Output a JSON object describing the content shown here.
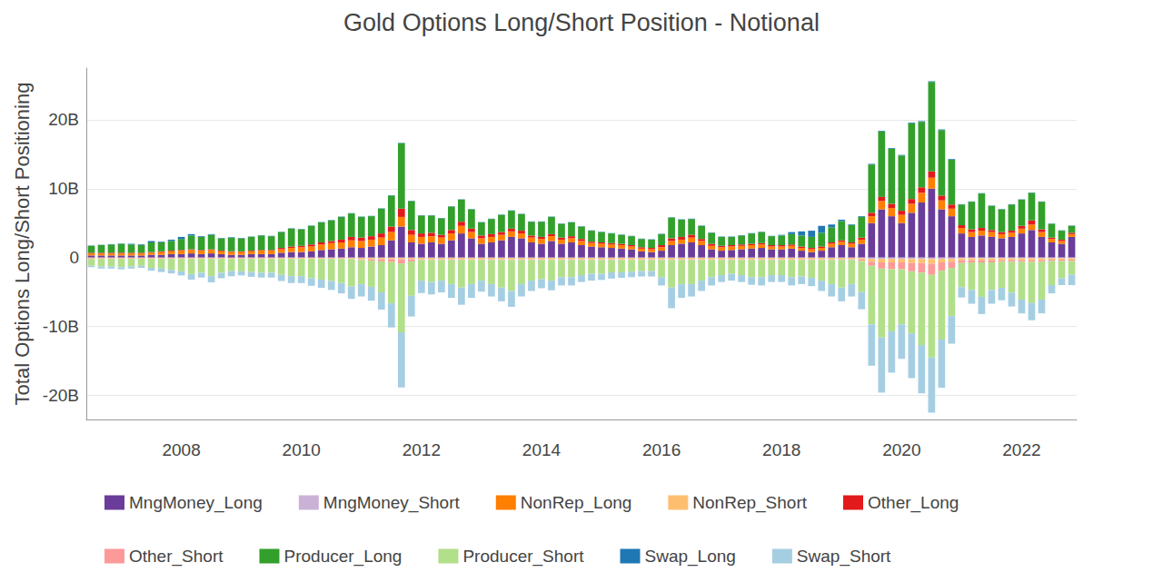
{
  "chart_data": {
    "type": "bar",
    "title": "Gold Options Long/Short Position - Notional",
    "y_label": "Total Options Long/Short Positioning",
    "stacked": true,
    "grid": true,
    "legend": "bottom",
    "categories": [
      null,
      null,
      null,
      null,
      null,
      null,
      null,
      null,
      null,
      "2008",
      null,
      null,
      null,
      null,
      null,
      null,
      null,
      null,
      null,
      null,
      null,
      "2010",
      null,
      null,
      null,
      null,
      null,
      null,
      null,
      null,
      null,
      null,
      null,
      "2012",
      null,
      null,
      null,
      null,
      null,
      null,
      null,
      null,
      null,
      null,
      null,
      "2014",
      null,
      null,
      null,
      null,
      null,
      null,
      null,
      null,
      null,
      null,
      null,
      "2016",
      null,
      null,
      null,
      null,
      null,
      null,
      null,
      null,
      null,
      null,
      null,
      "2018",
      null,
      null,
      null,
      null,
      null,
      null,
      null,
      null,
      null,
      null,
      null,
      "2020",
      null,
      null,
      null,
      null,
      null,
      null,
      null,
      null,
      null,
      null,
      null,
      "2022",
      null,
      null,
      null,
      null,
      null
    ],
    "ylim": [
      -23.5,
      27.5
    ],
    "yticks": [
      {
        "value": -20,
        "label": "-20B"
      },
      {
        "value": -10,
        "label": "-10B"
      },
      0,
      {
        "value": 10,
        "label": "10B"
      },
      {
        "value": 20,
        "label": "20B"
      }
    ],
    "series": [
      {
        "name": "MngMoney_Long",
        "color": "#6a3d9a",
        "values": [
          0.3,
          0.3,
          0.3,
          0.3,
          0.3,
          0.3,
          0.4,
          0.4,
          0.5,
          0.5,
          0.6,
          0.5,
          0.6,
          0.5,
          0.4,
          0.4,
          0.5,
          0.5,
          0.5,
          0.7,
          0.8,
          0.8,
          0.9,
          1.1,
          1.2,
          1.3,
          1.5,
          1.4,
          1.6,
          1.8,
          2.5,
          4.5,
          2.2,
          2.0,
          2.2,
          2.0,
          2.5,
          3.5,
          2.8,
          2.0,
          2.2,
          2.5,
          3.0,
          2.8,
          2.2,
          2.0,
          2.4,
          2.0,
          2.2,
          1.8,
          1.6,
          1.5,
          1.4,
          1.3,
          1.2,
          0.9,
          0.8,
          1.0,
          1.8,
          2.0,
          2.2,
          1.8,
          1.2,
          1.0,
          1.1,
          1.2,
          1.3,
          1.4,
          1.2,
          1.2,
          1.3,
          1.0,
          0.8,
          1.0,
          1.5,
          1.8,
          1.5,
          2.0,
          5.0,
          7.0,
          6.0,
          5.0,
          6.5,
          8.0,
          10.0,
          7.0,
          6.0,
          3.5,
          3.0,
          3.2,
          3.0,
          2.8,
          3.0,
          3.5,
          4.0,
          3.0,
          2.2,
          2.0,
          3.0
        ]
      },
      {
        "name": "MngMoney_Short",
        "color": "#cab2d6",
        "values": [
          -0.05,
          -0.05,
          -0.05,
          -0.05,
          -0.05,
          -0.05,
          -0.05,
          -0.05,
          -0.05,
          -0.05,
          -0.05,
          -0.05,
          -0.05,
          -0.05,
          -0.05,
          -0.05,
          -0.05,
          -0.05,
          -0.05,
          -0.05,
          -0.05,
          -0.05,
          -0.05,
          -0.05,
          -0.05,
          -0.05,
          -0.05,
          -0.05,
          -0.05,
          -0.05,
          -0.05,
          -0.05,
          -0.05,
          -0.05,
          -0.05,
          -0.05,
          -0.05,
          -0.05,
          -0.05,
          -0.05,
          -0.05,
          -0.05,
          -0.05,
          -0.05,
          -0.05,
          -0.05,
          -0.05,
          -0.05,
          -0.05,
          -0.05,
          -0.05,
          -0.05,
          -0.05,
          -0.05,
          -0.05,
          -0.05,
          -0.05,
          -0.05,
          -0.05,
          -0.05,
          -0.05,
          -0.05,
          -0.05,
          -0.05,
          -0.05,
          -0.05,
          -0.05,
          -0.05,
          -0.05,
          -0.05,
          -0.05,
          -0.05,
          -0.05,
          -0.05,
          -0.05,
          -0.05,
          -0.05,
          -0.1,
          -0.2,
          -0.2,
          -0.2,
          -0.2,
          -0.2,
          -0.2,
          -0.2,
          -0.2,
          -0.2,
          -0.1,
          -0.1,
          -0.1,
          -0.1,
          -0.1,
          -0.1,
          -0.1,
          -0.1,
          -0.1,
          -0.1,
          -0.1,
          -0.1
        ]
      },
      {
        "name": "NonRep_Long",
        "color": "#ff7f00",
        "values": [
          0.3,
          0.3,
          0.3,
          0.3,
          0.3,
          0.3,
          0.3,
          0.4,
          0.4,
          0.5,
          0.5,
          0.5,
          0.5,
          0.4,
          0.4,
          0.4,
          0.4,
          0.5,
          0.5,
          0.5,
          0.6,
          0.7,
          0.7,
          0.8,
          0.9,
          0.9,
          1.0,
          1.0,
          1.0,
          1.1,
          1.2,
          1.4,
          1.1,
          1.0,
          0.9,
          0.9,
          1.0,
          1.1,
          0.9,
          0.8,
          0.8,
          0.8,
          0.8,
          0.7,
          0.7,
          0.7,
          0.7,
          0.6,
          0.6,
          0.6,
          0.5,
          0.5,
          0.5,
          0.5,
          0.4,
          0.4,
          0.4,
          0.5,
          0.6,
          0.6,
          0.7,
          0.6,
          0.5,
          0.5,
          0.5,
          0.5,
          0.5,
          0.5,
          0.4,
          0.4,
          0.4,
          0.4,
          0.4,
          0.4,
          0.5,
          0.5,
          0.5,
          0.6,
          1.0,
          1.2,
          1.2,
          1.2,
          1.3,
          1.4,
          1.6,
          1.3,
          1.1,
          0.8,
          0.7,
          0.7,
          0.7,
          0.6,
          0.6,
          0.7,
          0.8,
          0.7,
          0.5,
          0.4,
          0.4
        ]
      },
      {
        "name": "NonRep_Short",
        "color": "#fdbf6f",
        "values": [
          -0.1,
          -0.1,
          -0.1,
          -0.1,
          -0.1,
          -0.1,
          -0.1,
          -0.1,
          -0.1,
          -0.1,
          -0.1,
          -0.1,
          -0.1,
          -0.1,
          -0.1,
          -0.1,
          -0.1,
          -0.1,
          -0.1,
          -0.1,
          -0.1,
          -0.1,
          -0.1,
          -0.1,
          -0.1,
          -0.1,
          -0.1,
          -0.2,
          -0.2,
          -0.2,
          -0.2,
          -0.2,
          -0.2,
          -0.2,
          -0.2,
          -0.2,
          -0.2,
          -0.2,
          -0.2,
          -0.2,
          -0.2,
          -0.2,
          -0.2,
          -0.2,
          -0.2,
          -0.2,
          -0.2,
          -0.2,
          -0.2,
          -0.2,
          -0.2,
          -0.2,
          -0.2,
          -0.2,
          -0.2,
          -0.2,
          -0.2,
          -0.2,
          -0.2,
          -0.2,
          -0.2,
          -0.2,
          -0.2,
          -0.2,
          -0.2,
          -0.2,
          -0.2,
          -0.2,
          -0.2,
          -0.2,
          -0.2,
          -0.2,
          -0.2,
          -0.2,
          -0.2,
          -0.2,
          -0.2,
          -0.2,
          -0.4,
          -0.5,
          -0.5,
          -0.5,
          -0.6,
          -0.6,
          -0.7,
          -0.5,
          -0.4,
          -0.3,
          -0.3,
          -0.3,
          -0.3,
          -0.3,
          -0.3,
          -0.3,
          -0.3,
          -0.3,
          -0.2,
          -0.2,
          -0.2
        ]
      },
      {
        "name": "Other_Long",
        "color": "#e31a1c",
        "values": [
          0.1,
          0.1,
          0.1,
          0.1,
          0.1,
          0.1,
          0.1,
          0.1,
          0.1,
          0.1,
          0.1,
          0.1,
          0.1,
          0.1,
          0.1,
          0.1,
          0.1,
          0.1,
          0.1,
          0.2,
          0.2,
          0.2,
          0.3,
          0.3,
          0.3,
          0.4,
          0.5,
          0.5,
          0.5,
          0.6,
          0.8,
          1.2,
          0.7,
          0.5,
          0.5,
          0.4,
          0.5,
          0.6,
          0.5,
          0.4,
          0.4,
          0.4,
          0.4,
          0.4,
          0.3,
          0.3,
          0.3,
          0.3,
          0.3,
          0.3,
          0.2,
          0.2,
          0.2,
          0.2,
          0.2,
          0.2,
          0.2,
          0.3,
          0.4,
          0.4,
          0.4,
          0.3,
          0.3,
          0.2,
          0.2,
          0.2,
          0.2,
          0.2,
          0.2,
          0.2,
          0.2,
          0.2,
          0.2,
          0.2,
          0.2,
          0.2,
          0.2,
          0.3,
          0.5,
          0.6,
          0.6,
          0.6,
          0.7,
          0.8,
          0.9,
          0.7,
          0.6,
          0.4,
          0.4,
          0.4,
          0.3,
          0.3,
          0.3,
          0.4,
          0.6,
          0.4,
          0.2,
          0.2,
          0.2
        ]
      },
      {
        "name": "Other_Short",
        "color": "#fb9a99",
        "values": [
          -0.05,
          -0.05,
          -0.05,
          -0.05,
          -0.05,
          -0.05,
          -0.05,
          -0.05,
          -0.05,
          -0.05,
          -0.05,
          -0.05,
          -0.05,
          -0.05,
          -0.05,
          -0.05,
          -0.05,
          -0.05,
          -0.05,
          -0.05,
          -0.05,
          -0.05,
          -0.05,
          -0.05,
          -0.05,
          -0.05,
          -0.05,
          -0.1,
          -0.2,
          -0.3,
          -0.4,
          -0.6,
          -0.3,
          -0.1,
          -0.1,
          -0.1,
          -0.1,
          -0.1,
          -0.1,
          -0.1,
          -0.1,
          -0.1,
          -0.1,
          -0.1,
          -0.1,
          -0.1,
          -0.1,
          -0.1,
          -0.1,
          -0.1,
          -0.1,
          -0.1,
          -0.1,
          -0.1,
          -0.1,
          -0.1,
          -0.1,
          -0.1,
          -0.1,
          -0.1,
          -0.1,
          -0.1,
          -0.1,
          -0.1,
          -0.1,
          -0.1,
          -0.1,
          -0.1,
          -0.1,
          -0.1,
          -0.1,
          -0.1,
          -0.1,
          -0.1,
          -0.1,
          -0.1,
          -0.1,
          -0.2,
          -0.6,
          -0.9,
          -1.0,
          -1.0,
          -1.2,
          -1.4,
          -1.6,
          -1.2,
          -0.9,
          -0.4,
          -0.3,
          -0.3,
          -0.3,
          -0.2,
          -0.2,
          -0.2,
          -0.2,
          -0.2,
          -0.2,
          -0.2,
          -0.2
        ]
      },
      {
        "name": "Producer_Long",
        "color": "#33a02c",
        "values": [
          1.0,
          1.1,
          1.2,
          1.3,
          1.2,
          1.1,
          1.4,
          1.3,
          1.4,
          1.6,
          2.0,
          1.9,
          2.1,
          1.8,
          2.0,
          1.9,
          2.0,
          2.1,
          2.0,
          2.3,
          2.6,
          2.4,
          2.7,
          2.9,
          3.0,
          3.3,
          3.4,
          3.0,
          2.9,
          3.6,
          4.5,
          9.5,
          4.2,
          2.6,
          2.5,
          2.4,
          3.4,
          3.2,
          2.8,
          1.9,
          2.2,
          2.5,
          2.6,
          2.4,
          2.0,
          2.2,
          2.5,
          2.0,
          2.0,
          1.8,
          1.6,
          1.5,
          1.4,
          1.3,
          1.3,
          1.2,
          1.2,
          1.6,
          3.0,
          2.5,
          2.3,
          1.9,
          1.6,
          1.3,
          1.2,
          1.3,
          1.5,
          1.6,
          1.3,
          1.4,
          1.5,
          1.6,
          1.6,
          2.0,
          2.2,
          2.8,
          2.5,
          3.0,
          7.0,
          9.5,
          8.0,
          8.0,
          11.0,
          9.5,
          13.0,
          9.5,
          6.5,
          3.0,
          4.0,
          5.0,
          3.5,
          3.3,
          3.8,
          3.8,
          4.0,
          4.0,
          2.0,
          1.3,
          1.0
        ]
      },
      {
        "name": "Producer_Short",
        "color": "#b2df8a",
        "values": [
          -1.0,
          -1.1,
          -1.1,
          -1.2,
          -1.1,
          -1.0,
          -1.3,
          -1.4,
          -1.6,
          -1.8,
          -2.2,
          -2.0,
          -2.5,
          -2.0,
          -1.8,
          -1.8,
          -1.9,
          -2.0,
          -2.0,
          -2.3,
          -2.5,
          -2.5,
          -2.8,
          -3.0,
          -3.2,
          -3.5,
          -4.0,
          -3.5,
          -3.8,
          -4.5,
          -6.0,
          -10.0,
          -5.0,
          -3.0,
          -3.2,
          -3.0,
          -3.5,
          -4.0,
          -3.5,
          -3.0,
          -3.5,
          -4.0,
          -4.5,
          -3.5,
          -3.0,
          -2.8,
          -3.0,
          -2.5,
          -2.5,
          -2.2,
          -2.0,
          -2.0,
          -1.8,
          -1.8,
          -1.7,
          -1.6,
          -1.6,
          -2.5,
          -4.0,
          -3.5,
          -3.5,
          -3.0,
          -2.5,
          -2.2,
          -2.0,
          -2.2,
          -2.5,
          -2.5,
          -2.2,
          -2.2,
          -2.5,
          -2.4,
          -2.6,
          -3.0,
          -3.5,
          -4.0,
          -3.5,
          -4.5,
          -8.5,
          -10.0,
          -9.0,
          -8.0,
          -9.0,
          -10.5,
          -12.0,
          -10.0,
          -7.0,
          -3.5,
          -4.0,
          -5.0,
          -4.0,
          -3.8,
          -4.5,
          -5.5,
          -6.0,
          -5.5,
          -3.5,
          -2.5,
          -2.0
        ]
      },
      {
        "name": "Swap_Long",
        "color": "#1f78b4",
        "values": [
          0.05,
          0.05,
          0.05,
          0.05,
          0.1,
          0.1,
          0.2,
          0.1,
          0.2,
          0.3,
          0.2,
          0.1,
          0.1,
          0.05,
          0.05,
          0.05,
          0.05,
          0.05,
          0.05,
          0.05,
          0.05,
          0.05,
          0.05,
          0.05,
          0.05,
          0.05,
          0.05,
          0.05,
          0.05,
          0.05,
          0.05,
          0.05,
          0.05,
          0.05,
          0.05,
          0.05,
          0.05,
          0.05,
          0.05,
          0.05,
          0.05,
          0.05,
          0.05,
          0.05,
          0.05,
          0.05,
          0.05,
          0.05,
          0.05,
          0.05,
          0.05,
          0.05,
          0.05,
          0.05,
          0.05,
          0.05,
          0.05,
          0.05,
          0.05,
          0.05,
          0.05,
          0.05,
          0.05,
          0.05,
          0.05,
          0.05,
          0.05,
          0.05,
          0.05,
          0.1,
          0.3,
          0.6,
          0.9,
          1.0,
          0.4,
          0.2,
          0.1,
          0.1,
          0.1,
          0.1,
          0.1,
          0.1,
          0.1,
          0.1,
          0.1,
          0.1,
          0.1,
          0.05,
          0.05,
          0.05,
          0.05,
          0.05,
          0.05,
          0.05,
          0.05,
          0.05,
          0.05,
          0.05,
          0.05
        ]
      },
      {
        "name": "Swap_Short",
        "color": "#a6cee3",
        "values": [
          -0.2,
          -0.3,
          -0.3,
          -0.3,
          -0.3,
          -0.3,
          -0.4,
          -0.5,
          -0.5,
          -0.6,
          -0.8,
          -0.7,
          -0.9,
          -0.8,
          -0.7,
          -0.6,
          -0.7,
          -0.7,
          -0.7,
          -0.9,
          -1.0,
          -1.0,
          -1.1,
          -1.2,
          -1.3,
          -1.5,
          -1.8,
          -1.8,
          -2.0,
          -2.5,
          -3.5,
          -8.0,
          -3.0,
          -1.8,
          -1.8,
          -1.7,
          -2.0,
          -2.5,
          -2.0,
          -1.6,
          -1.8,
          -2.0,
          -2.3,
          -1.8,
          -1.5,
          -1.3,
          -1.4,
          -1.2,
          -1.2,
          -1.0,
          -1.0,
          -0.9,
          -0.9,
          -0.8,
          -0.8,
          -0.8,
          -0.8,
          -1.2,
          -3.0,
          -2.0,
          -1.8,
          -1.5,
          -1.2,
          -1.0,
          -1.0,
          -1.0,
          -1.1,
          -1.2,
          -1.0,
          -1.0,
          -1.2,
          -1.1,
          -1.2,
          -1.5,
          -1.8,
          -2.0,
          -1.8,
          -2.5,
          -6.0,
          -8.0,
          -6.0,
          -5.0,
          -6.5,
          -7.0,
          -8.0,
          -7.0,
          -4.0,
          -1.5,
          -2.0,
          -2.5,
          -2.0,
          -1.8,
          -2.0,
          -2.0,
          -2.5,
          -2.0,
          -1.2,
          -1.0,
          -1.5
        ]
      }
    ]
  }
}
